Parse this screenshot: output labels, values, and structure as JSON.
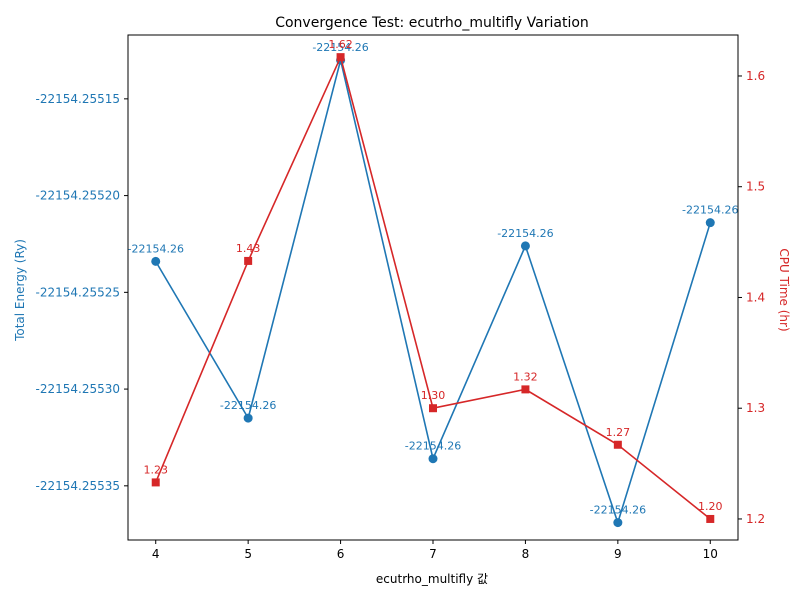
{
  "chart_data": {
    "type": "line",
    "title": "Convergence Test: ecutrho_multifly Variation",
    "xlabel": "ecutrho_multifly 값",
    "y1label": "Total Energy (Ry)",
    "y2label": "CPU Time (hr)",
    "x": [
      4,
      5,
      6,
      7,
      8,
      9,
      10
    ],
    "xlim": [
      3.7,
      10.3
    ],
    "y1lim": [
      -22154.255378,
      -22154.255117
    ],
    "y2lim": [
      1.181,
      1.637
    ],
    "y1ticks": [
      -22154.25515,
      -22154.2552,
      -22154.25525,
      -22154.2553,
      -22154.25535
    ],
    "y1ticklabels": [
      "-22154.25515",
      "-22154.25520",
      "-22154.25525",
      "-22154.25530",
      "-22154.25535"
    ],
    "y2ticks": [
      1.2,
      1.3,
      1.4,
      1.5,
      1.6
    ],
    "y2ticklabels": [
      "1.2",
      "1.3",
      "1.4",
      "1.5",
      "1.6"
    ],
    "grid": false,
    "series": [
      {
        "axis": "left",
        "color": "#1f77b4",
        "marker": "circle",
        "values": [
          -22154.255234,
          -22154.255315,
          -22154.25513,
          -22154.255336,
          -22154.255226,
          -22154.255369,
          -22154.255214
        ],
        "labels": [
          "-22154.26",
          "-22154.26",
          "-22154.26",
          "-22154.26",
          "-22154.26",
          "-22154.26",
          "-22154.26"
        ]
      },
      {
        "axis": "right",
        "color": "#d62728",
        "marker": "square",
        "values": [
          1.233,
          1.433,
          1.617,
          1.3,
          1.317,
          1.267,
          1.2
        ],
        "labels": [
          "1.23",
          "1.43",
          "1.62",
          "1.30",
          "1.32",
          "1.27",
          "1.20"
        ]
      }
    ]
  }
}
